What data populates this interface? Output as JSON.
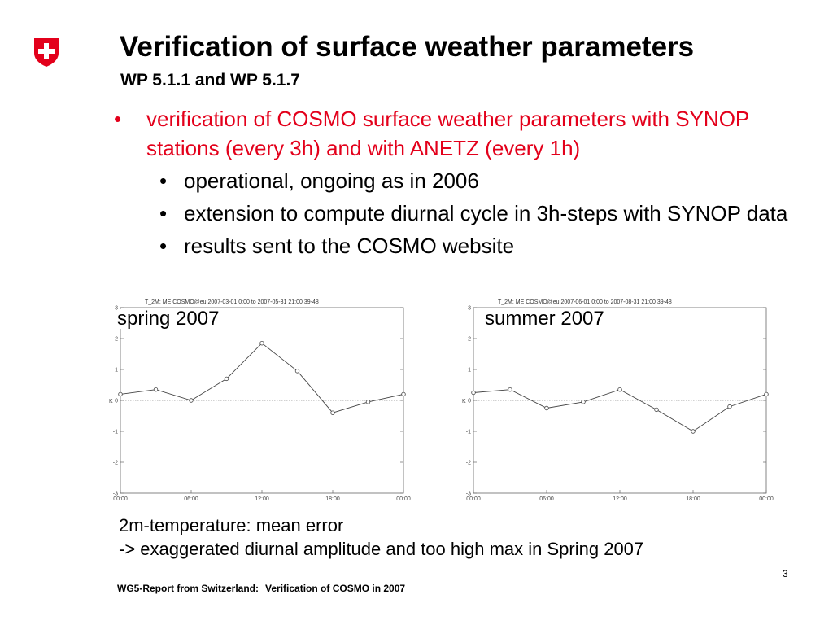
{
  "logo": {
    "name": "Swiss cross shield",
    "color": "#e3001b"
  },
  "title": "Verification of surface weather parameters",
  "subtitle": "WP 5.1.1 and WP 5.1.7",
  "bullets": {
    "main": "verification of COSMO surface weather parameters with SYNOP stations (every 3h) and with ANETZ (every 1h)",
    "sub": [
      "operational, ongoing as in 2006",
      "extension to compute diurnal cycle in 3h-steps with SYNOP data",
      "results sent to the COSMO website"
    ],
    "bullet_char": "•"
  },
  "chart_data": [
    {
      "type": "line",
      "label": "spring 2007",
      "title": "T_2M: ME COSMO@eu 2007-03-01  0:00 to 2007-05-31 21:00 39-48",
      "ylabel": "K",
      "xlabel": "",
      "ylim": [
        -3,
        3
      ],
      "yticks": [
        "-3",
        "-2",
        "-1",
        "0",
        "1",
        "2",
        "3"
      ],
      "xticks": [
        "00:00",
        "06:00",
        "12:00",
        "18:00",
        "00:00"
      ],
      "x_hours": [
        0,
        3,
        6,
        9,
        12,
        15,
        18,
        21,
        24
      ],
      "values": [
        0.2,
        0.35,
        0.0,
        0.7,
        1.85,
        0.95,
        -0.4,
        -0.05,
        0.2
      ],
      "zero_line": true
    },
    {
      "type": "line",
      "label": "summer 2007",
      "title": "T_2M: ME COSMO@eu 2007-06-01  0:00 to 2007-08-31 21:00 39-48",
      "ylabel": "K",
      "xlabel": "",
      "ylim": [
        -3,
        3
      ],
      "yticks": [
        "-3",
        "-2",
        "-1",
        "0",
        "1",
        "2",
        "3"
      ],
      "xticks": [
        "00:00",
        "06:00",
        "12:00",
        "18:00",
        "00:00"
      ],
      "x_hours": [
        0,
        3,
        6,
        9,
        12,
        15,
        18,
        21,
        24
      ],
      "values": [
        0.25,
        0.35,
        -0.25,
        -0.05,
        0.35,
        -0.3,
        -1.0,
        -0.2,
        0.2
      ],
      "zero_line": true
    }
  ],
  "caption": {
    "line1": "2m-temperature: mean error",
    "line2": "-> exaggerated diurnal amplitude and too high max in Spring 2007"
  },
  "footer": {
    "left": "WG5-Report from Switzerland:",
    "right": "Verification of COSMO in 2007"
  },
  "page_number": "3"
}
